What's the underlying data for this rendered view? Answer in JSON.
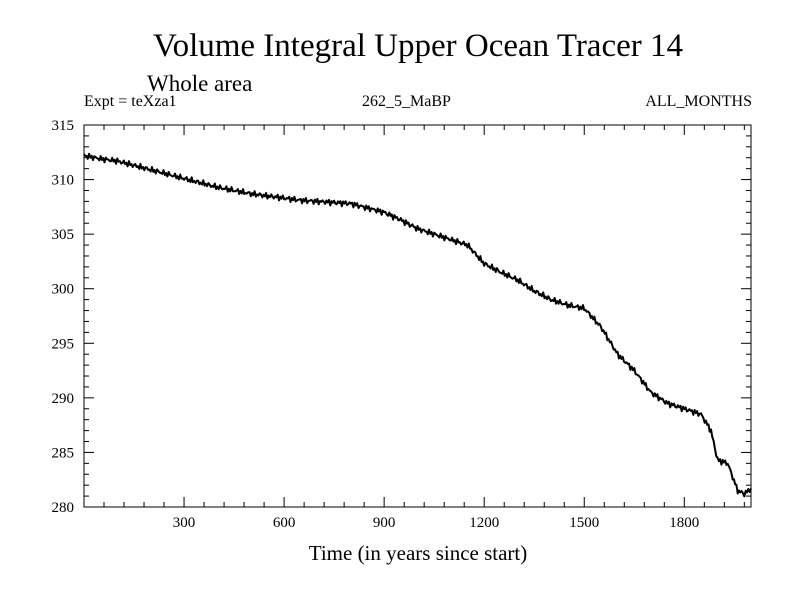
{
  "chart_data": {
    "type": "line",
    "title": "Volume Integral Upper Ocean Tracer 14",
    "subtitle": "Whole area",
    "annotations": {
      "left": "Expt = teXza1",
      "center": "262_5_MaBP",
      "right": "ALL_MONTHS"
    },
    "xlabel": "Time (in years since start)",
    "ylabel": "",
    "xlim": [
      0,
      2000
    ],
    "ylim": [
      280,
      315
    ],
    "xticks": [
      300,
      600,
      900,
      1200,
      1500,
      1800
    ],
    "yticks": [
      280,
      285,
      290,
      295,
      300,
      305,
      310,
      315
    ],
    "series": [
      {
        "name": "Tracer 14",
        "x": [
          0,
          50,
          100,
          150,
          200,
          250,
          300,
          350,
          400,
          450,
          500,
          550,
          600,
          650,
          700,
          750,
          800,
          850,
          900,
          950,
          1000,
          1050,
          1100,
          1150,
          1200,
          1250,
          1300,
          1350,
          1400,
          1450,
          1500,
          1550,
          1600,
          1650,
          1700,
          1750,
          1800,
          1850,
          1880,
          1900,
          1930,
          1960,
          1980,
          2000
        ],
        "y": [
          312.2,
          311.9,
          311.7,
          311.3,
          310.9,
          310.5,
          310.1,
          309.7,
          309.3,
          309.0,
          308.7,
          308.5,
          308.3,
          308.1,
          308.0,
          307.9,
          307.8,
          307.4,
          307.0,
          306.3,
          305.5,
          305.0,
          304.5,
          304.0,
          302.3,
          301.5,
          300.8,
          299.8,
          299.0,
          298.5,
          298.2,
          296.5,
          294.0,
          292.5,
          290.5,
          289.5,
          289.0,
          288.5,
          287.0,
          284.3,
          284.0,
          281.5,
          281.2,
          281.7
        ]
      }
    ]
  }
}
